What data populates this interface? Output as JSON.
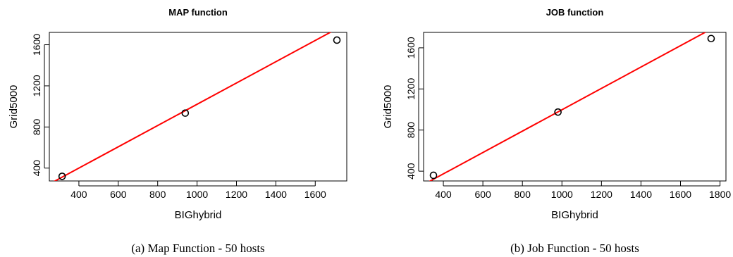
{
  "chart_data": [
    {
      "type": "scatter",
      "title": "MAP function",
      "xlabel": "BIGhybrid",
      "ylabel": "Grid5000",
      "caption": "(a)  Map Function - 50 hosts",
      "xlim": [
        250,
        1760
      ],
      "ylim": [
        275,
        1720
      ],
      "xticks": [
        400,
        600,
        800,
        1000,
        1200,
        1400,
        1600
      ],
      "yticks": [
        400,
        800,
        1200,
        1600
      ],
      "grid": false,
      "points": [
        {
          "x": 315,
          "y": 320
        },
        {
          "x": 940,
          "y": 935
        },
        {
          "x": 1710,
          "y": 1645
        }
      ],
      "fit_line": {
        "x": [
          250,
          1760
        ],
        "y": [
          245,
          1807
        ],
        "color": "#ff0000"
      },
      "point_color": "#000000"
    },
    {
      "type": "scatter",
      "title": "JOB function",
      "xlabel": "BIGhybrid",
      "ylabel": "Grid5000",
      "caption": "(b)  Job Function - 50 hosts",
      "xlim": [
        300,
        1830
      ],
      "ylim": [
        305,
        1750
      ],
      "xticks": [
        400,
        600,
        800,
        1000,
        1200,
        1400,
        1600,
        1800
      ],
      "yticks": [
        400,
        800,
        1200,
        1600
      ],
      "grid": false,
      "points": [
        {
          "x": 350,
          "y": 360
        },
        {
          "x": 980,
          "y": 975
        },
        {
          "x": 1755,
          "y": 1690
        }
      ],
      "fit_line": {
        "x": [
          300,
          1830
        ],
        "y": [
          270,
          1860
        ],
        "color": "#ff0000"
      },
      "point_color": "#000000"
    }
  ]
}
